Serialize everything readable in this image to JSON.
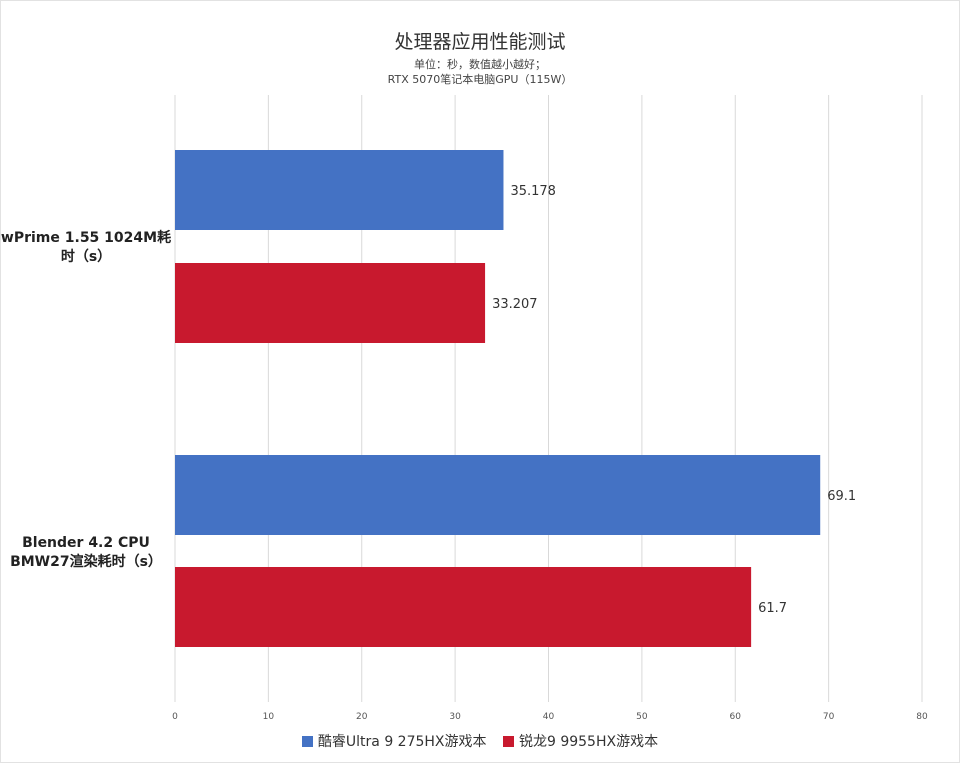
{
  "header": {
    "title": "处理器应用性能测试",
    "subtitle": "单位：秒，数值越小越好；",
    "subtitle2": "RTX 5070笔记本电脑GPU（115W）"
  },
  "chart_data": {
    "type": "bar",
    "orientation": "horizontal",
    "categories": [
      [
        "wPrime 1.55 1024M耗",
        "时（s）"
      ],
      [
        "Blender 4.2 CPU",
        "BMW27渲染耗时（s）"
      ]
    ],
    "series": [
      {
        "name": "酷睿Ultra 9 275HX游戏本",
        "color": "#4472c4",
        "values": [
          35.178,
          69.1
        ]
      },
      {
        "name": "锐龙9 9955HX游戏本",
        "color": "#c8192e",
        "values": [
          33.207,
          61.7
        ]
      }
    ],
    "data_labels": [
      [
        "35.178",
        "69.1"
      ],
      [
        "33.207",
        "61.7"
      ]
    ],
    "xlim": [
      0,
      80
    ],
    "x_ticks": [
      "0",
      "10",
      "20",
      "30",
      "40",
      "50",
      "60",
      "70",
      "80"
    ],
    "grid": true,
    "legend_position": "bottom"
  }
}
